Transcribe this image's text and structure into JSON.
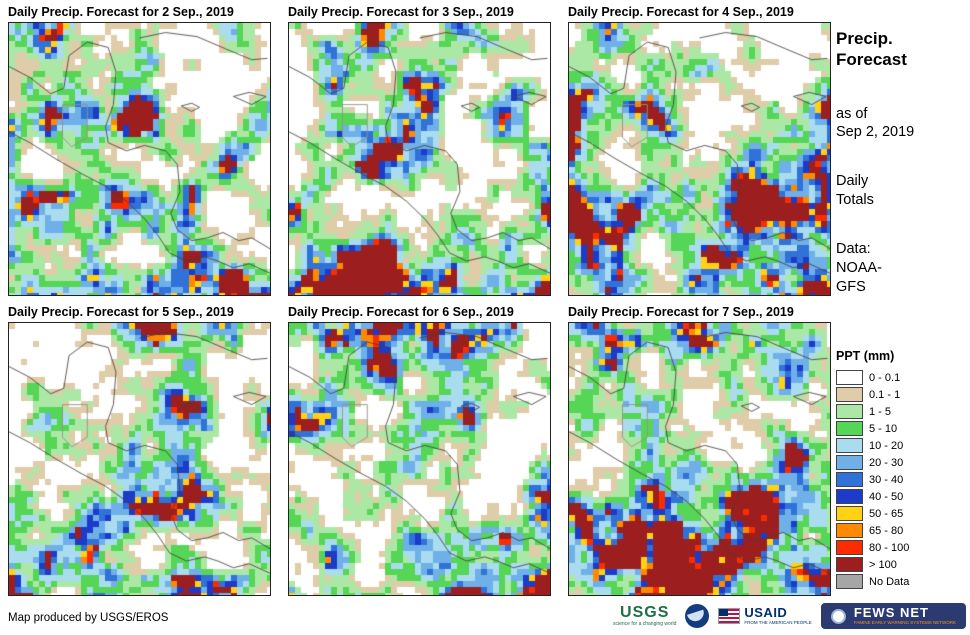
{
  "panels": [
    {
      "title": "Daily Precip. Forecast for 2 Sep., 2019"
    },
    {
      "title": "Daily Precip. Forecast for 3 Sep., 2019"
    },
    {
      "title": "Daily Precip. Forecast for 4 Sep., 2019"
    },
    {
      "title": "Daily Precip. Forecast for 5 Sep., 2019"
    },
    {
      "title": "Daily Precip. Forecast for 6 Sep., 2019"
    },
    {
      "title": "Daily Precip. Forecast for 7 Sep., 2019"
    }
  ],
  "sidebar": {
    "title": "Precip.\nForecast",
    "as_of": "as of\nSep 2, 2019",
    "totals": "Daily\nTotals",
    "source": "Data:\nNOAA-\nGFS"
  },
  "legend": {
    "title": "PPT (mm)",
    "entries": [
      {
        "label": "0 - 0.1",
        "color": "#FFFFFF"
      },
      {
        "label": "0.1 - 1",
        "color": "#DFCCA8"
      },
      {
        "label": "1 - 5",
        "color": "#ACE8A5"
      },
      {
        "label": "5 - 10",
        "color": "#56D656"
      },
      {
        "label": "10 - 20",
        "color": "#AADCF0"
      },
      {
        "label": "20 - 30",
        "color": "#6FB0E8"
      },
      {
        "label": "30 - 40",
        "color": "#3072D8"
      },
      {
        "label": "40 - 50",
        "color": "#1C3BC8"
      },
      {
        "label": "50 - 65",
        "color": "#FFD213"
      },
      {
        "label": "65 - 80",
        "color": "#FF8A00"
      },
      {
        "label": "80 - 100",
        "color": "#FB2C00"
      },
      {
        "label": "> 100",
        "color": "#9C1E1E"
      },
      {
        "label": "No Data",
        "color": "#A6A6A6"
      }
    ]
  },
  "footer": {
    "credit": "Map produced by USGS/EROS"
  },
  "logos": [
    {
      "name": "USGS",
      "tagline": "science for a changing world"
    },
    {
      "name": "NOAA"
    },
    {
      "name": "USAID",
      "tagline": "FROM THE AMERICAN PEOPLE"
    },
    {
      "name": "FEWS NET",
      "tagline": "FAMINE EARLY WARNING SYSTEMS NETWORK"
    }
  ]
}
